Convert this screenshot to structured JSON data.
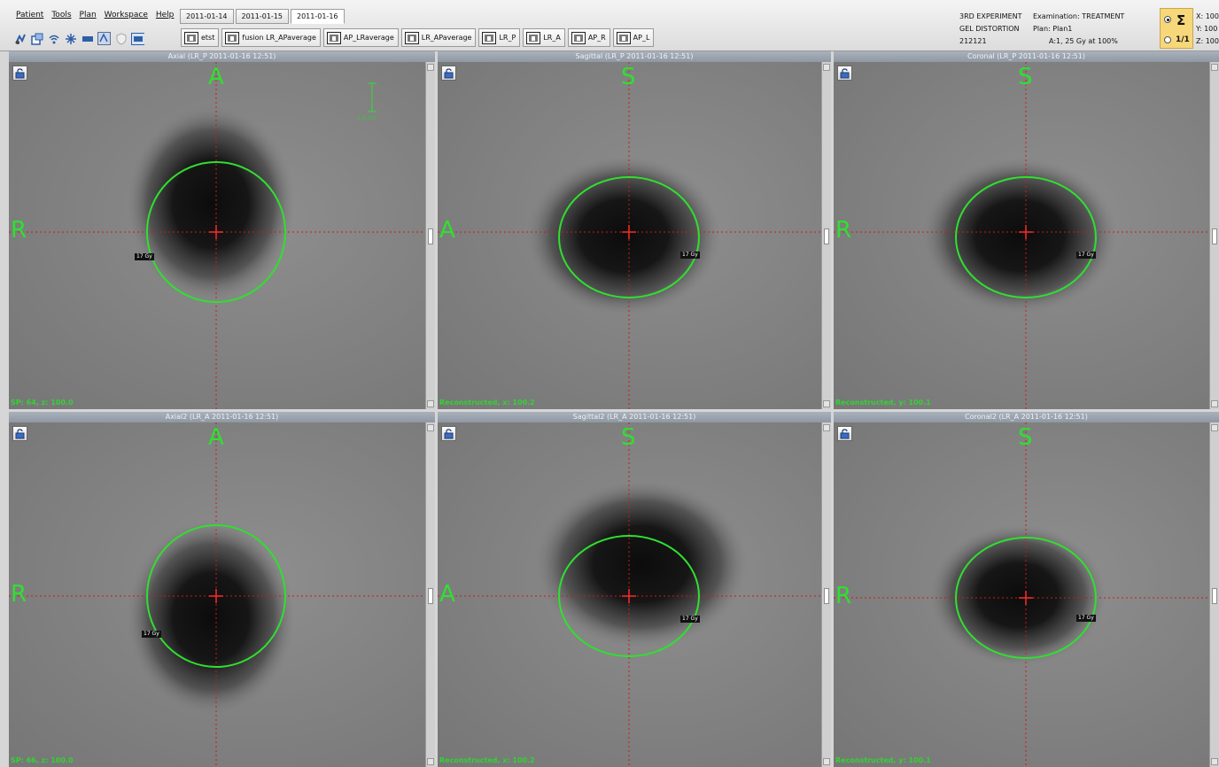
{
  "menu": [
    "Patient",
    "Tools",
    "Plan",
    "Workspace",
    "Help"
  ],
  "date_tabs": [
    "2011-01-14",
    "2011-01-15",
    "2011-01-16"
  ],
  "active_date_tab": 2,
  "toolbar_icons": [
    "dose-icon",
    "window-icon",
    "wifi-icon",
    "snowflake-icon",
    "slab-icon",
    "layout-icon",
    "shield-icon",
    "screen-icon"
  ],
  "dataset_tabs": [
    "etst",
    "fusion LR_APaverage",
    "AP_LRaverage",
    "LR_APaverage",
    "LR_P",
    "LR_A",
    "AP_R",
    "AP_L"
  ],
  "info": {
    "line1_left": "3RD EXPERIMENT",
    "line1_right": "Examination: TREATMENT",
    "line2_left": "GEL DISTORTION",
    "line2_right": "Plan: Plan1",
    "line3_left": "212121",
    "line3_right": "A:1, 25 Gy at 100%"
  },
  "sum_symbol": "Σ",
  "fraction_label": "1/1",
  "coords": [
    "X: 100",
    "Y: 100",
    "Z: 100"
  ],
  "colors": {
    "overlay_green": "#2fe02f",
    "crosshair_red": "#cc1a1a",
    "title_bar": "#98a1ab",
    "legend_yellow": "#f6d77a"
  },
  "viewports": [
    {
      "title": "Axial (LR_P 2011-01-16 12:51)",
      "top": "A",
      "left": "R",
      "status": "SP: 64, z: 100.0",
      "dose_label": "17 Gy"
    },
    {
      "title": "Sagittal (LR_P 2011-01-16 12:51)",
      "top": "S",
      "left": "A",
      "status": "Reconstructed, x: 100.2",
      "dose_label": "17 Gy"
    },
    {
      "title": "Coronal (LR_P 2011-01-16 12:51)",
      "top": "S",
      "left": "R",
      "status": "Reconstructed, y: 100.1",
      "dose_label": "17 Gy"
    },
    {
      "title": "Axial2 (LR_A 2011-01-16 12:51)",
      "top": "A",
      "left": "R",
      "status": "SP: 66, z: 100.0",
      "dose_label": "17 Gy"
    },
    {
      "title": "Sagittal2 (LR_A 2011-01-16 12:51)",
      "top": "S",
      "left": "A",
      "status": "Reconstructed, x: 100.2",
      "dose_label": "17 Gy"
    },
    {
      "title": "Coronal2 (LR_A 2011-01-16 12:51)",
      "top": "S",
      "left": "R",
      "status": "Reconstructed, y: 100.1",
      "dose_label": "17 Gy"
    }
  ],
  "scale_label": "1.0 cm"
}
